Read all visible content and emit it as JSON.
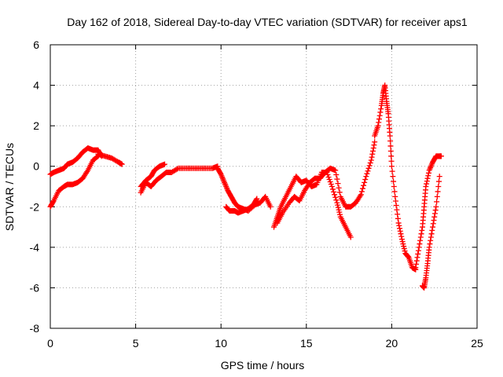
{
  "chart_data": {
    "type": "scatter",
    "title": "Day 162 of 2018, Sidereal Day-to-day VTEC variation (SDTVAR) for receiver aps1",
    "xlabel": "GPS time / hours",
    "ylabel": "SDTVAR / TECUs",
    "xlim": [
      0,
      25
    ],
    "ylim": [
      -8,
      6
    ],
    "xticks": [
      "0",
      "5",
      "10",
      "15",
      "20",
      "25"
    ],
    "yticks": [
      "-8",
      "-6",
      "-4",
      "-2",
      "0",
      "2",
      "4",
      "6"
    ],
    "grid": true,
    "marker": "+",
    "color": "#ff0000",
    "series": [
      {
        "x": [
          0.0,
          0.2,
          0.5,
          0.8,
          1.0,
          1.3,
          1.6,
          1.9,
          2.2,
          2.5,
          2.8,
          3.0
        ],
        "y": [
          -0.4,
          -0.3,
          -0.2,
          -0.1,
          0.1,
          0.2,
          0.4,
          0.7,
          0.9,
          0.8,
          0.8,
          0.5
        ]
      },
      {
        "x": [
          2.8,
          3.2,
          3.6,
          4.0,
          4.2
        ],
        "y": [
          0.6,
          0.5,
          0.4,
          0.2,
          0.1
        ]
      },
      {
        "x": [
          0.0,
          0.2,
          0.5,
          0.8,
          1.0,
          1.3,
          1.6,
          1.9,
          2.2,
          2.5,
          2.8
        ],
        "y": [
          -2.0,
          -1.7,
          -1.2,
          -1.0,
          -0.9,
          -0.9,
          -0.8,
          -0.6,
          -0.2,
          0.3,
          0.5
        ]
      },
      {
        "x": [
          5.3,
          5.6,
          5.9,
          6.2,
          6.5,
          6.8,
          7.1,
          7.5,
          8.0,
          8.5,
          9.0,
          9.5,
          9.8
        ],
        "y": [
          -1.3,
          -0.8,
          -1.0,
          -0.7,
          -0.5,
          -0.3,
          -0.3,
          -0.1,
          -0.1,
          -0.1,
          -0.1,
          -0.1,
          0.0
        ]
      },
      {
        "x": [
          5.3,
          5.6,
          5.9,
          6.1,
          6.4,
          6.7
        ],
        "y": [
          -1.0,
          -0.7,
          -0.5,
          -0.2,
          0.0,
          0.1
        ]
      },
      {
        "x": [
          9.8,
          10.0,
          10.2,
          10.4,
          10.6,
          10.8,
          11.0,
          11.3,
          11.6,
          12.0,
          12.3,
          12.6,
          12.9
        ],
        "y": [
          -0.1,
          -0.4,
          -0.8,
          -1.2,
          -1.5,
          -1.8,
          -2.0,
          -2.1,
          -2.2,
          -1.9,
          -1.8,
          -1.5,
          -2.0
        ]
      },
      {
        "x": [
          10.3,
          10.5,
          10.8,
          11.0,
          11.3,
          11.6,
          11.9,
          12.1
        ],
        "y": [
          -2.0,
          -2.2,
          -2.2,
          -2.3,
          -2.2,
          -2.1,
          -1.9,
          -1.6
        ]
      },
      {
        "x": [
          13.1,
          13.3,
          13.5,
          13.8,
          14.1,
          14.4,
          14.7,
          15.0,
          15.3,
          15.6,
          15.9,
          16.2,
          16.5,
          16.8,
          17.0,
          17.3,
          17.6
        ],
        "y": [
          -3.0,
          -2.5,
          -2.0,
          -1.5,
          -1.0,
          -0.5,
          -0.8,
          -0.7,
          -1.0,
          -0.9,
          -0.3,
          -0.3,
          -1.0,
          -1.8,
          -2.5,
          -3.0,
          -3.5
        ]
      },
      {
        "x": [
          13.3,
          13.6,
          14.0,
          14.3,
          14.6,
          14.9,
          15.2,
          15.5,
          15.8,
          16.1,
          16.4,
          16.7,
          17.0,
          17.3,
          17.6,
          17.9,
          18.2,
          18.5,
          18.8,
          19.0
        ],
        "y": [
          -2.8,
          -2.3,
          -1.8,
          -1.5,
          -1.7,
          -1.2,
          -0.8,
          -0.6,
          -0.6,
          -0.3,
          -0.1,
          -0.2,
          -1.5,
          -2.0,
          -2.0,
          -1.8,
          -1.4,
          -0.5,
          0.3,
          1.2
        ]
      },
      {
        "x": [
          19.0,
          19.2,
          19.4,
          19.5,
          19.6,
          19.7,
          19.8,
          19.9,
          20.0,
          20.2,
          20.4,
          20.6,
          20.8,
          21.0,
          21.2,
          21.4
        ],
        "y": [
          1.5,
          2.0,
          3.0,
          3.6,
          4.0,
          3.2,
          2.6,
          1.5,
          0.0,
          -1.5,
          -2.8,
          -3.6,
          -4.3,
          -4.5,
          -5.0,
          -5.1
        ]
      },
      {
        "x": [
          21.4,
          21.6,
          21.8,
          21.9,
          22.0,
          22.2,
          22.4,
          22.6,
          22.8,
          22.9
        ],
        "y": [
          -5.0,
          -4.0,
          -3.0,
          -2.0,
          -1.0,
          -0.2,
          0.2,
          0.5,
          0.5,
          0.5
        ]
      },
      {
        "x": [
          21.8,
          21.9,
          22.0,
          22.1,
          22.2,
          22.4,
          22.6,
          22.8
        ],
        "y": [
          -5.9,
          -6.0,
          -5.5,
          -4.8,
          -4.0,
          -3.0,
          -2.0,
          -0.5
        ]
      }
    ]
  }
}
